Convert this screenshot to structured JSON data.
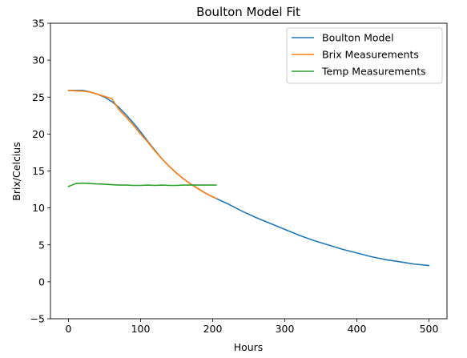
{
  "chart_data": {
    "type": "line",
    "title": "Boulton Model Fit",
    "xlabel": "Hours",
    "ylabel": "Brix/Celcius",
    "xlim": [
      -25,
      525
    ],
    "ylim": [
      -5,
      35
    ],
    "xticks": [
      0,
      100,
      200,
      300,
      400,
      500
    ],
    "yticks": [
      -5,
      0,
      5,
      10,
      15,
      20,
      25,
      30,
      35
    ],
    "grid": false,
    "legend_position": "top-right",
    "series": [
      {
        "name": "Boulton Model",
        "color": "#1f77b4",
        "x": [
          0,
          10,
          20,
          30,
          40,
          50,
          60,
          70,
          80,
          90,
          100,
          110,
          120,
          130,
          140,
          150,
          160,
          170,
          180,
          190,
          200,
          220,
          240,
          260,
          280,
          300,
          320,
          340,
          360,
          380,
          400,
          420,
          440,
          460,
          480,
          500
        ],
        "y": [
          25.9,
          25.9,
          25.9,
          25.7,
          25.4,
          25.0,
          24.4,
          23.6,
          22.6,
          21.5,
          20.3,
          19.0,
          17.8,
          16.6,
          15.6,
          14.7,
          13.9,
          13.2,
          12.6,
          12.0,
          11.5,
          10.6,
          9.6,
          8.7,
          7.9,
          7.1,
          6.3,
          5.6,
          5.0,
          4.4,
          3.9,
          3.4,
          3.0,
          2.7,
          2.4,
          2.2
        ]
      },
      {
        "name": "Brix Measurements",
        "color": "#ff7f0e",
        "x": [
          0,
          10,
          20,
          30,
          40,
          50,
          60,
          70,
          80,
          90,
          100,
          110,
          120,
          130,
          140,
          150,
          160,
          170,
          180,
          190,
          200,
          205
        ],
        "y": [
          25.9,
          25.85,
          25.8,
          25.7,
          25.4,
          25.1,
          24.8,
          23.3,
          22.3,
          21.2,
          20.0,
          18.9,
          17.7,
          16.6,
          15.6,
          14.7,
          13.9,
          13.2,
          12.6,
          12.0,
          11.5,
          11.3
        ]
      },
      {
        "name": "Temp Measurements",
        "color": "#2ca02c",
        "x": [
          0,
          10,
          20,
          30,
          40,
          50,
          60,
          70,
          80,
          90,
          100,
          110,
          120,
          130,
          140,
          150,
          160,
          170,
          180,
          190,
          200,
          205
        ],
        "y": [
          12.9,
          13.3,
          13.35,
          13.3,
          13.25,
          13.2,
          13.15,
          13.1,
          13.1,
          13.05,
          13.05,
          13.1,
          13.05,
          13.1,
          13.05,
          13.05,
          13.1,
          13.1,
          13.1,
          13.1,
          13.1,
          13.1
        ]
      }
    ]
  }
}
